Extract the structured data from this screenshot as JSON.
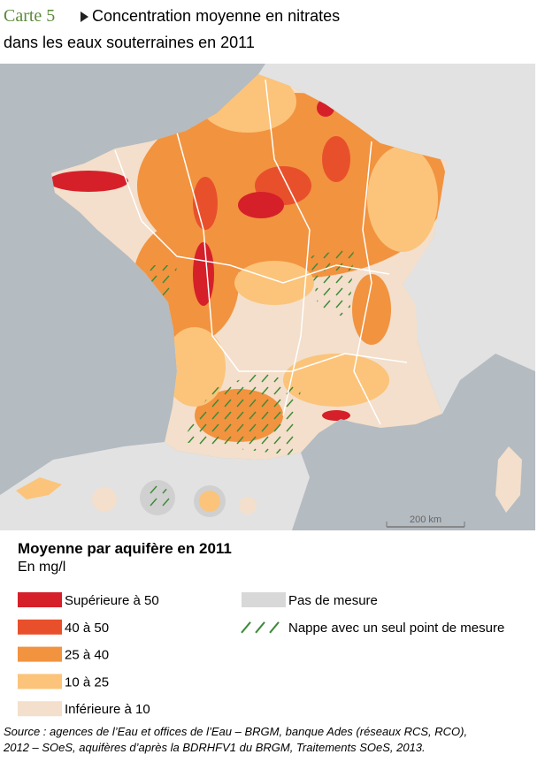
{
  "header": {
    "label": "Carte 5",
    "title_line1": "Concentration moyenne en nitrates",
    "title_line2": "dans les eaux souterraines en 2011"
  },
  "map": {
    "scale_label": "200 km"
  },
  "legend": {
    "title": "Moyenne par aquifère en 2011",
    "unit": "En mg/l",
    "items": [
      {
        "label": "Supérieure à 50",
        "color": "#d5202a"
      },
      {
        "label": "40 à 50",
        "color": "#e8502c"
      },
      {
        "label": "25 à 40",
        "color": "#f2933f"
      },
      {
        "label": "10 à 25",
        "color": "#fbc47a"
      },
      {
        "label": "Inférieure à 10",
        "color": "#f3dfcb"
      },
      {
        "label": "Pas de mesure",
        "color": "#d8d8d8"
      },
      {
        "label": "Nappe avec un seul point de mesure",
        "color": "#3e8a3a"
      }
    ]
  },
  "source_lines": [
    "Source : agences de l’Eau et offices de l’Eau – BRGM, banque Ades (réseaux RCS, RCO),",
    "2012 – SOeS, aquifères d’après la BDRHFV1 du BRGM, Traitements SOeS, 2013."
  ]
}
